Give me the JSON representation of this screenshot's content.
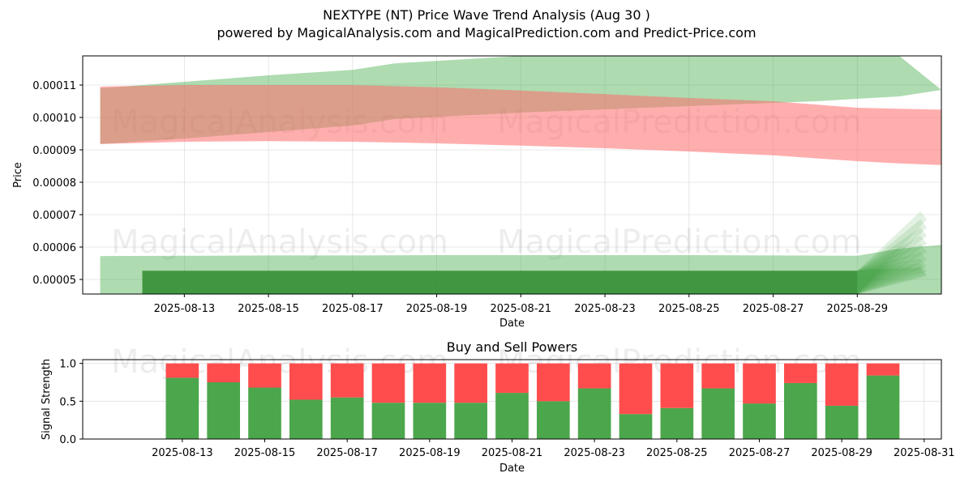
{
  "header": {
    "title": "NEXTYPE (NT) Price Wave Trend Analysis (Aug 30 )",
    "subtitle": "powered by MagicalAnalysis.com and MagicalPrediction.com and Predict-Price.com"
  },
  "watermarks": [
    "MagicalAnalysis.com",
    "MagicalPrediction.com"
  ],
  "colors": {
    "green_band": "#4caf50",
    "red_band": "#ff6b6b",
    "buy": "#4ca64c",
    "sell": "#ff4d4d"
  },
  "chart_data": [
    {
      "type": "area",
      "title": "",
      "xlabel": "Date",
      "ylabel": "Price",
      "x_ticks": [
        "2025-08-13",
        "2025-08-15",
        "2025-08-17",
        "2025-08-19",
        "2025-08-21",
        "2025-08-23",
        "2025-08-25",
        "2025-08-27",
        "2025-08-29"
      ],
      "y_ticks": [
        "0.00005",
        "0.00006",
        "0.00007",
        "0.00008",
        "0.00009",
        "0.00010",
        "0.00011"
      ],
      "ylim": [
        4.55e-05,
        0.000119
      ],
      "xlim": [
        "2025-08-10T14:00",
        "2025-08-31T00:00"
      ],
      "grid": true,
      "series": [
        {
          "color": "green",
          "dates": [
            "2025-08-11",
            "2025-08-13",
            "2025-08-15",
            "2025-08-17",
            "2025-08-18",
            "2025-08-21",
            "2025-08-25",
            "2025-08-28",
            "2025-08-30",
            "2025-08-31"
          ],
          "upper": [
            0.000109,
            0.000111,
            0.000113,
            0.0001147,
            0.0001167,
            0.000119,
            0.000119,
            0.000119,
            0.000119,
            0.0001085
          ],
          "lower": [
            9.18e-05,
            9.35e-05,
            9.55e-05,
            9.75e-05,
            9.95e-05,
            0.0001015,
            0.0001035,
            0.000105,
            0.0001065,
            0.0001085
          ]
        },
        {
          "color": "red",
          "dates": [
            "2025-08-11",
            "2025-08-13",
            "2025-08-15",
            "2025-08-17",
            "2025-08-19",
            "2025-08-21",
            "2025-08-23",
            "2025-08-25",
            "2025-08-27",
            "2025-08-29",
            "2025-08-30",
            "2025-08-31"
          ],
          "upper": [
            0.0001095,
            0.00011,
            0.00011,
            0.00011,
            0.0001093,
            0.0001083,
            0.0001072,
            0.000106,
            0.000105,
            0.000103,
            0.0001027,
            0.0001024
          ],
          "lower": [
            9.18e-05,
            9.25e-05,
            9.27e-05,
            9.25e-05,
            9.2e-05,
            9.13e-05,
            9.05e-05,
            8.95e-05,
            8.83e-05,
            8.65e-05,
            8.58e-05,
            8.53e-05
          ]
        },
        {
          "color": "green",
          "dates": [
            "2025-08-11",
            "2025-08-13",
            "2025-08-15",
            "2025-08-17",
            "2025-08-19",
            "2025-08-21",
            "2025-08-23",
            "2025-08-25",
            "2025-08-27",
            "2025-08-29",
            "2025-08-30",
            "2025-08-31"
          ],
          "upper": [
            5.72e-05,
            5.73e-05,
            5.74e-05,
            5.74e-05,
            5.75e-05,
            5.75e-05,
            5.75e-05,
            5.75e-05,
            5.74e-05,
            5.73e-05,
            5.95e-05,
            6.07e-05
          ],
          "lower": [
            4.55e-05,
            4.55e-05,
            4.55e-05,
            4.55e-05,
            4.55e-05,
            4.55e-05,
            4.55e-05,
            4.55e-05,
            4.55e-05,
            4.55e-05,
            4.55e-05,
            4.55e-05
          ]
        },
        {
          "color": "darkgreen",
          "dates": [
            "2025-08-12",
            "2025-08-13",
            "2025-08-15",
            "2025-08-17",
            "2025-08-19",
            "2025-08-21",
            "2025-08-23",
            "2025-08-25",
            "2025-08-27",
            "2025-08-29"
          ],
          "upper": [
            5.27e-05,
            5.27e-05,
            5.27e-05,
            5.27e-05,
            5.27e-05,
            5.27e-05,
            5.27e-05,
            5.27e-05,
            5.27e-05,
            5.27e-05
          ],
          "lower": [
            4.55e-05,
            4.55e-05,
            4.55e-05,
            4.55e-05,
            4.55e-05,
            4.55e-05,
            4.55e-05,
            4.55e-05,
            4.55e-05,
            4.55e-05
          ]
        }
      ],
      "fan": {
        "start_date": "2025-08-29",
        "start_upper": 5.27e-05,
        "start_lower": 4.55e-05,
        "end_date": "2025-08-30.5",
        "end_uppers": [
          7.1e-05,
          6.85e-05,
          6.6e-05,
          6.35e-05,
          6.1e-05,
          5.85e-05,
          5.65e-05,
          5.5e-05,
          5.4e-05,
          5.35e-05
        ]
      }
    },
    {
      "type": "bar",
      "title": "Buy and Sell Powers",
      "xlabel": "Date",
      "ylabel": "Signal Strength",
      "x_ticks": [
        "2025-08-13",
        "2025-08-15",
        "2025-08-17",
        "2025-08-19",
        "2025-08-21",
        "2025-08-23",
        "2025-08-25",
        "2025-08-27",
        "2025-08-29",
        "2025-08-31"
      ],
      "y_ticks": [
        "0.0",
        "0.5",
        "1.0"
      ],
      "ylim": [
        0,
        1.05
      ],
      "categories": [
        "2025-08-13",
        "2025-08-14",
        "2025-08-15",
        "2025-08-16",
        "2025-08-17",
        "2025-08-18",
        "2025-08-19",
        "2025-08-20",
        "2025-08-21",
        "2025-08-22",
        "2025-08-23",
        "2025-08-24",
        "2025-08-25",
        "2025-08-26",
        "2025-08-27",
        "2025-08-28",
        "2025-08-29",
        "2025-08-30"
      ],
      "series": [
        {
          "name": "Buy",
          "values": [
            0.81,
            0.75,
            0.68,
            0.52,
            0.55,
            0.48,
            0.48,
            0.48,
            0.61,
            0.5,
            0.67,
            0.33,
            0.41,
            0.67,
            0.47,
            0.74,
            0.44,
            0.84
          ]
        },
        {
          "name": "Sell",
          "values": [
            0.19,
            0.25,
            0.32,
            0.48,
            0.45,
            0.52,
            0.52,
            0.52,
            0.39,
            0.5,
            0.33,
            0.67,
            0.59,
            0.33,
            0.53,
            0.26,
            0.56,
            0.16
          ]
        }
      ]
    }
  ]
}
